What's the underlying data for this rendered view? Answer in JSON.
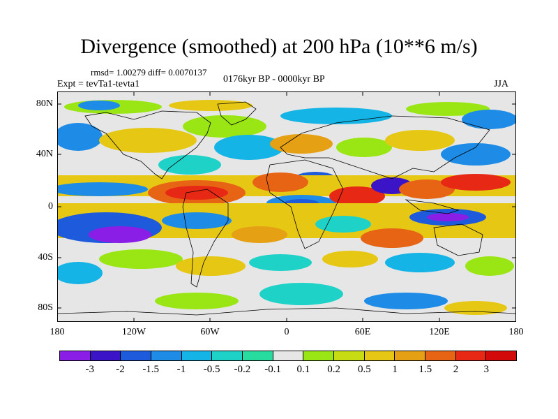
{
  "title": "Divergence (smoothed) at 200 hPa (10**6 m/s)",
  "stats": "rmsd= 1.00279  diff= 0.0070137",
  "period": "0176kyr BP - 0000kyr BP",
  "experiment": "Expt = tevTa1-tevta1",
  "season": "JJA",
  "map": {
    "lat_labels": [
      "80N",
      "40N",
      "0",
      "40S",
      "80S"
    ],
    "lon_labels": [
      "180",
      "120W",
      "60W",
      "0",
      "60E",
      "120E",
      "180"
    ],
    "field_description": "Shaded divergence anomaly on a global lat-lon grid with coastlines"
  },
  "colorbar": {
    "labels": [
      "-3",
      "-2",
      "-1.5",
      "-1",
      "-0.5",
      "-0.2",
      "-0.1",
      "0.1",
      "0.2",
      "0.5",
      "1",
      "1.5",
      "2",
      "3"
    ],
    "colors": [
      "#8a1ee6",
      "#3c14c8",
      "#1e5adc",
      "#1e8ce6",
      "#14b4e6",
      "#1ed2c8",
      "#28dca0",
      "#e6e6e6",
      "#9ae614",
      "#c8dc14",
      "#e6c814",
      "#e6a014",
      "#e66414",
      "#e62814",
      "#d20a0a"
    ]
  }
}
